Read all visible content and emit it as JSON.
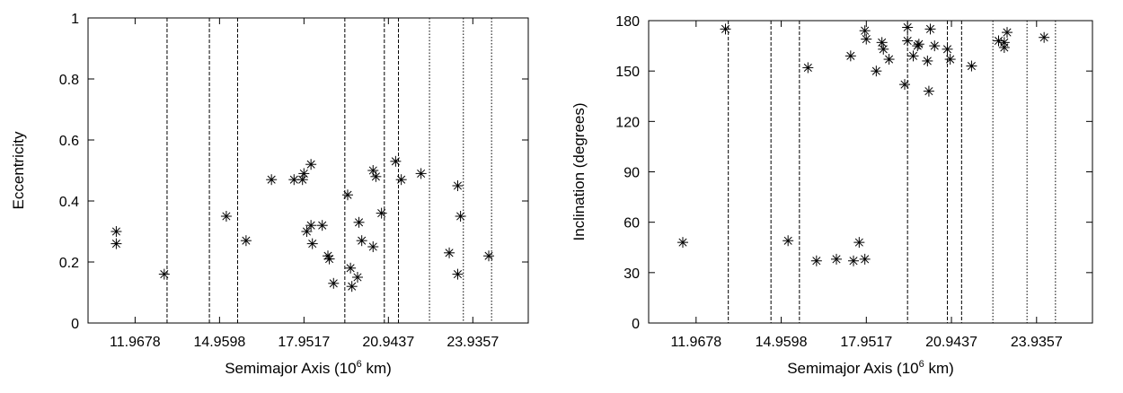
{
  "chart_data": [
    {
      "type": "scatter",
      "marker": "asterisk",
      "xlabel": "Semimajor Axis (10^6 km)",
      "ylabel": "Eccentricity",
      "xlim": [
        10.3,
        25.9
      ],
      "ylim": [
        0,
        1
      ],
      "xticks": [
        "11.9678",
        "14.9598",
        "17.9517",
        "20.9437",
        "23.9357"
      ],
      "yticks": [
        "0",
        "0.2",
        "0.4",
        "0.6",
        "0.8",
        "1"
      ],
      "vlines": [
        {
          "x": 13.1,
          "style": "dashed"
        },
        {
          "x": 14.6,
          "style": "dashed"
        },
        {
          "x": 15.6,
          "style": "dashed"
        },
        {
          "x": 19.4,
          "style": "dashed"
        },
        {
          "x": 20.8,
          "style": "dashed"
        },
        {
          "x": 21.3,
          "style": "dashed"
        },
        {
          "x": 22.4,
          "style": "dotted"
        },
        {
          "x": 23.6,
          "style": "dotted"
        },
        {
          "x": 24.6,
          "style": "dotted"
        }
      ],
      "points": [
        {
          "x": 11.3,
          "y": 0.3
        },
        {
          "x": 11.3,
          "y": 0.26
        },
        {
          "x": 13.0,
          "y": 0.16
        },
        {
          "x": 15.2,
          "y": 0.35
        },
        {
          "x": 15.9,
          "y": 0.27
        },
        {
          "x": 16.8,
          "y": 0.47
        },
        {
          "x": 17.6,
          "y": 0.47
        },
        {
          "x": 17.9,
          "y": 0.47
        },
        {
          "x": 17.95,
          "y": 0.49
        },
        {
          "x": 18.2,
          "y": 0.52
        },
        {
          "x": 18.05,
          "y": 0.3
        },
        {
          "x": 18.2,
          "y": 0.32
        },
        {
          "x": 18.25,
          "y": 0.26
        },
        {
          "x": 18.6,
          "y": 0.32
        },
        {
          "x": 18.8,
          "y": 0.22
        },
        {
          "x": 18.85,
          "y": 0.21
        },
        {
          "x": 19.0,
          "y": 0.13
        },
        {
          "x": 19.5,
          "y": 0.42
        },
        {
          "x": 19.6,
          "y": 0.18
        },
        {
          "x": 19.65,
          "y": 0.12
        },
        {
          "x": 19.85,
          "y": 0.15
        },
        {
          "x": 19.9,
          "y": 0.33
        },
        {
          "x": 20.0,
          "y": 0.27
        },
        {
          "x": 20.4,
          "y": 0.5
        },
        {
          "x": 20.5,
          "y": 0.48
        },
        {
          "x": 20.4,
          "y": 0.25
        },
        {
          "x": 20.7,
          "y": 0.36
        },
        {
          "x": 21.2,
          "y": 0.53
        },
        {
          "x": 21.4,
          "y": 0.47
        },
        {
          "x": 22.1,
          "y": 0.49
        },
        {
          "x": 23.1,
          "y": 0.23
        },
        {
          "x": 23.4,
          "y": 0.45
        },
        {
          "x": 23.5,
          "y": 0.35
        },
        {
          "x": 23.4,
          "y": 0.16
        },
        {
          "x": 24.5,
          "y": 0.22
        }
      ]
    },
    {
      "type": "scatter",
      "marker": "asterisk",
      "xlabel": "Semimajor Axis (10^6 km)",
      "ylabel": "Inclination (degrees)",
      "xlim": [
        10.3,
        25.9
      ],
      "ylim": [
        0,
        180
      ],
      "xticks": [
        "11.9678",
        "14.9598",
        "17.9517",
        "20.9437",
        "23.9357"
      ],
      "yticks": [
        "0",
        "30",
        "60",
        "90",
        "120",
        "150",
        "180"
      ],
      "vlines": [
        {
          "x": 13.1,
          "style": "dashed"
        },
        {
          "x": 14.6,
          "style": "dashed"
        },
        {
          "x": 15.6,
          "style": "dashed"
        },
        {
          "x": 19.4,
          "style": "dashed"
        },
        {
          "x": 20.8,
          "style": "dashed"
        },
        {
          "x": 21.3,
          "style": "dashed"
        },
        {
          "x": 22.4,
          "style": "dotted"
        },
        {
          "x": 23.6,
          "style": "dotted"
        },
        {
          "x": 24.6,
          "style": "dotted"
        }
      ],
      "points": [
        {
          "x": 11.5,
          "y": 48
        },
        {
          "x": 13.0,
          "y": 175
        },
        {
          "x": 15.2,
          "y": 49
        },
        {
          "x": 15.9,
          "y": 152
        },
        {
          "x": 16.2,
          "y": 37
        },
        {
          "x": 16.9,
          "y": 38
        },
        {
          "x": 17.5,
          "y": 37
        },
        {
          "x": 17.7,
          "y": 48
        },
        {
          "x": 17.9,
          "y": 38
        },
        {
          "x": 17.4,
          "y": 159
        },
        {
          "x": 17.9,
          "y": 174
        },
        {
          "x": 17.95,
          "y": 169
        },
        {
          "x": 18.3,
          "y": 150
        },
        {
          "x": 18.5,
          "y": 167
        },
        {
          "x": 18.55,
          "y": 163
        },
        {
          "x": 18.75,
          "y": 157
        },
        {
          "x": 19.3,
          "y": 142
        },
        {
          "x": 19.4,
          "y": 176
        },
        {
          "x": 19.4,
          "y": 168
        },
        {
          "x": 19.6,
          "y": 159
        },
        {
          "x": 19.75,
          "y": 165
        },
        {
          "x": 19.8,
          "y": 166
        },
        {
          "x": 20.1,
          "y": 156
        },
        {
          "x": 20.15,
          "y": 138
        },
        {
          "x": 20.2,
          "y": 175
        },
        {
          "x": 20.35,
          "y": 165
        },
        {
          "x": 20.8,
          "y": 163
        },
        {
          "x": 20.9,
          "y": 157
        },
        {
          "x": 21.65,
          "y": 153
        },
        {
          "x": 22.6,
          "y": 168
        },
        {
          "x": 22.8,
          "y": 167
        },
        {
          "x": 22.8,
          "y": 164
        },
        {
          "x": 22.9,
          "y": 173
        },
        {
          "x": 24.2,
          "y": 170
        }
      ]
    }
  ]
}
